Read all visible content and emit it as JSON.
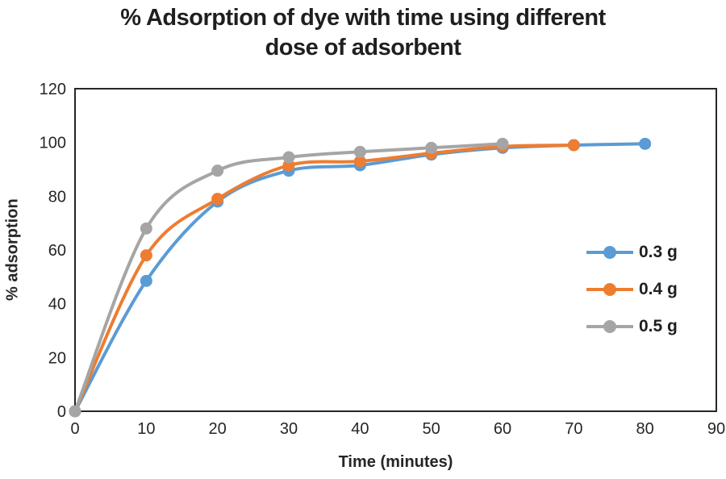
{
  "chart_data": {
    "type": "line",
    "title": "% Adsorption of dye with time using different dose of adsorbent",
    "title_line1": "% Adsorption of dye with time using different",
    "title_line2": "dose of adsorbent",
    "xlabel": "Time (minutes)",
    "ylabel": "% adsorption",
    "xlim": [
      0,
      90
    ],
    "ylim": [
      0,
      120
    ],
    "x_ticks": [
      0,
      10,
      20,
      30,
      40,
      50,
      60,
      70,
      80,
      90
    ],
    "y_ticks": [
      0,
      20,
      40,
      60,
      80,
      100,
      120
    ],
    "grid": false,
    "line_style": "smooth",
    "marker": "circle",
    "legend_position": "right-middle",
    "series": [
      {
        "name": "0.3 g",
        "color": "#5B9BD5",
        "x": [
          0,
          10,
          20,
          30,
          40,
          50,
          60,
          70,
          80
        ],
        "y": [
          0,
          48.5,
          78,
          89.5,
          91.5,
          95.5,
          98,
          99,
          99.5
        ]
      },
      {
        "name": "0.4 g",
        "color": "#ED7D31",
        "x": [
          0,
          10,
          20,
          30,
          40,
          50,
          60,
          70
        ],
        "y": [
          0,
          58,
          79,
          91.5,
          93,
          96,
          98.5,
          99
        ]
      },
      {
        "name": "0.5 g",
        "color": "#A5A5A5",
        "x": [
          0,
          10,
          20,
          30,
          40,
          50,
          60
        ],
        "y": [
          0,
          68,
          89.5,
          94.5,
          96.5,
          98,
          99.5
        ]
      }
    ]
  },
  "colors": {
    "axis": "#262626",
    "text": "#262626",
    "background": "#ffffff"
  }
}
